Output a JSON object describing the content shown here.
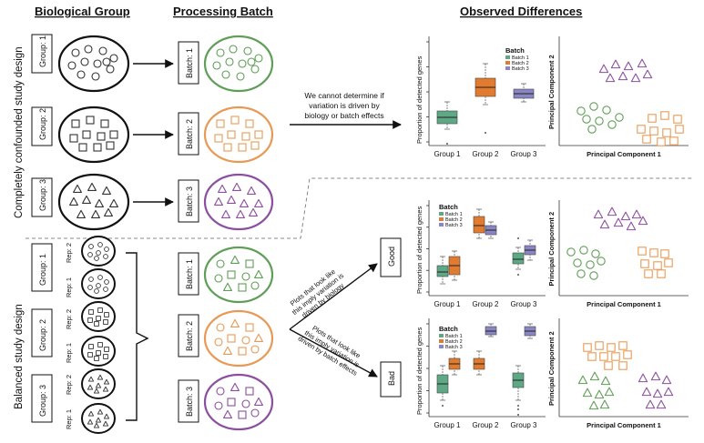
{
  "headers": {
    "biological_group": "Biological Group",
    "processing_batch": "Processing Batch",
    "observed_differences": "Observed Differences"
  },
  "side_labels": {
    "confounded": "Completely confounded study design",
    "balanced": "Balanced study design"
  },
  "confounded": {
    "groups": [
      "Group: 1",
      "Group: 2",
      "Group: 3"
    ],
    "batches": [
      "Batch: 1",
      "Batch: 2",
      "Batch: 3"
    ],
    "arrow_note_lines": [
      "We cannot determine if",
      "variation is driven by",
      "biology or batch effects"
    ]
  },
  "balanced": {
    "groups": [
      "Group: 1",
      "Group: 2",
      "Group: 3"
    ],
    "reps": [
      "Rep: 2",
      "Rep: 1",
      "Rep: 2",
      "Rep: 1",
      "Rep: 2",
      "Rep: 1"
    ],
    "batches": [
      "Batch: 1",
      "Batch: 2",
      "Batch: 3"
    ],
    "good_label": "Good",
    "bad_label": "Bad",
    "good_note_lines": [
      "Plots that look like",
      "this imply variation is",
      "driven by biology"
    ],
    "bad_note_lines": [
      "Plots that look like",
      "this imply variation is",
      "driven by batch effects"
    ]
  },
  "plots": {
    "ylabel": "Proportion of detected genes",
    "xticks": [
      "Group 1",
      "Group 2",
      "Group 3"
    ],
    "legend_title": "Batch",
    "legend_entries": [
      "Batch 1",
      "Batch 2",
      "Batch 3"
    ],
    "pca_xlabel": "Principal Component 1",
    "pca_ylabel": "Principal Component 2"
  },
  "colors": {
    "batch1": "#5fa886",
    "batch2": "#e07b2f",
    "batch3": "#8a86c4",
    "green": "#5f9e56",
    "orange": "#e89a55",
    "purple": "#8c4f9f"
  }
}
